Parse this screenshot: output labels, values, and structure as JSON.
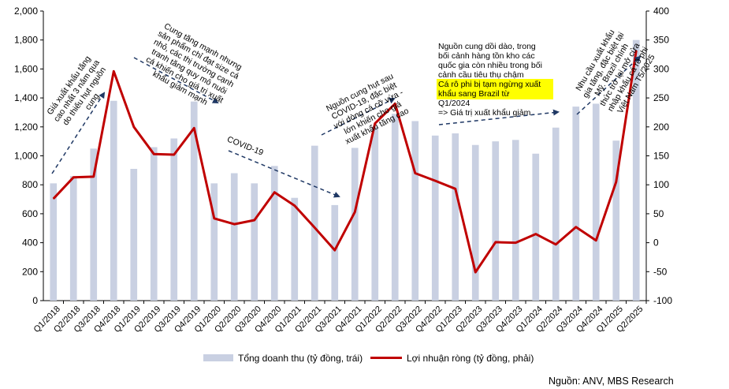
{
  "chart_data": {
    "type": "bar+line",
    "categories": [
      "Q1/2018",
      "Q2/2018",
      "Q3/2018",
      "Q4/2018",
      "Q1/2019",
      "Q2/2019",
      "Q3/2019",
      "Q4/2019",
      "Q1/2020",
      "Q2/2020",
      "Q3/2020",
      "Q4/2020",
      "Q1/2021",
      "Q2/2021",
      "Q3/2021",
      "Q4/2021",
      "Q1/2022",
      "Q2/2022",
      "Q3/2022",
      "Q4/2022",
      "Q1/2023",
      "Q2/2023",
      "Q3/2023",
      "Q4/2023",
      "Q1/2024",
      "Q2/2024",
      "Q3/2024",
      "Q4/2024",
      "Q1/2025",
      "Q2/2025"
    ],
    "series": [
      {
        "name": "Tổng doanh thu (tỷ đồng, trái)",
        "axis": "left",
        "kind": "bar",
        "color": "#c9d0e2",
        "values": [
          810,
          860,
          1050,
          1380,
          910,
          1060,
          1120,
          1375,
          810,
          880,
          810,
          930,
          710,
          1070,
          660,
          1055,
          1200,
          1290,
          1240,
          1140,
          1155,
          1075,
          1100,
          1110,
          1015,
          1195,
          1340,
          1360,
          1105,
          1800
        ]
      },
      {
        "name": "Lợi nhuận ròng (tỷ đồng, phải)",
        "axis": "right",
        "kind": "line",
        "color": "#c00000",
        "values": [
          76,
          113,
          114,
          296,
          200,
          153,
          152,
          198,
          42,
          32,
          39,
          87,
          64,
          26,
          -13,
          53,
          206,
          240,
          120,
          107,
          93,
          -51,
          1,
          0,
          15,
          -3,
          27,
          4,
          105,
          332
        ]
      }
    ],
    "y_left": {
      "range": [
        0,
        2000
      ],
      "ticks": [
        "0",
        "200",
        "400",
        "600",
        "800",
        "1,000",
        "1,200",
        "1,400",
        "1,600",
        "1,800",
        "2,000"
      ]
    },
    "y_right": {
      "range": [
        -100,
        400
      ],
      "ticks": [
        "-100",
        "-50",
        "0",
        "50",
        "100",
        "150",
        "200",
        "250",
        "300",
        "350",
        "400"
      ]
    },
    "annotations": [
      {
        "lines": [
          "Giá xuất khẩu tăng",
          "cao nhất 3 năm qua",
          "do thiếu hụt nguồn",
          "cung"
        ]
      },
      {
        "lines": [
          "Cung tăng mạnh nhưng",
          "sản phẩm chỉ đạt size cá",
          "nhỏ, các thị trường cạnh",
          "tranh tăng quy mô nuôi",
          "cá khiến cho giá trị xuất",
          "khẩu giảm mạnh"
        ]
      },
      {
        "lines": [
          "COVID-19"
        ]
      },
      {
        "lines": [
          "Nguồn cung hụt sau",
          "COVID-19, đặc biệt",
          "với dòng cá cỡ vừa -",
          "lớn khiến cho giá",
          "xuất khẩu tăng cao"
        ]
      },
      {
        "lines": [
          "Nguồn cung dồi dào, trong",
          "bối cảnh hàng tồn kho các",
          "quốc gia còn nhiều trong bối",
          "cảnh cầu tiêu thụ chậm"
        ],
        "highlight_lines": [
          "Cá rô phi bị tạm ngừng xuất",
          "khẩu sang Brazil từ",
          "Q1/2024"
        ],
        "tail": "=> Giá trị xuất khẩu giảm"
      },
      {
        "lines": [
          "Nhu cầu xuất khẩu",
          "gia tăng, đặc biệt tại",
          "Mỹ. Brazil chính",
          "thức trở lại mở cửa",
          "nhập khẩu cá rô phi",
          "Việt Nam T5/2025"
        ]
      }
    ],
    "legend": [
      {
        "label": "Tổng doanh thu (tỷ đồng, trái)"
      },
      {
        "label": "Lợi nhuận ròng (tỷ đồng, phải)"
      }
    ],
    "source": "Nguồn: ANV, MBS Research"
  }
}
